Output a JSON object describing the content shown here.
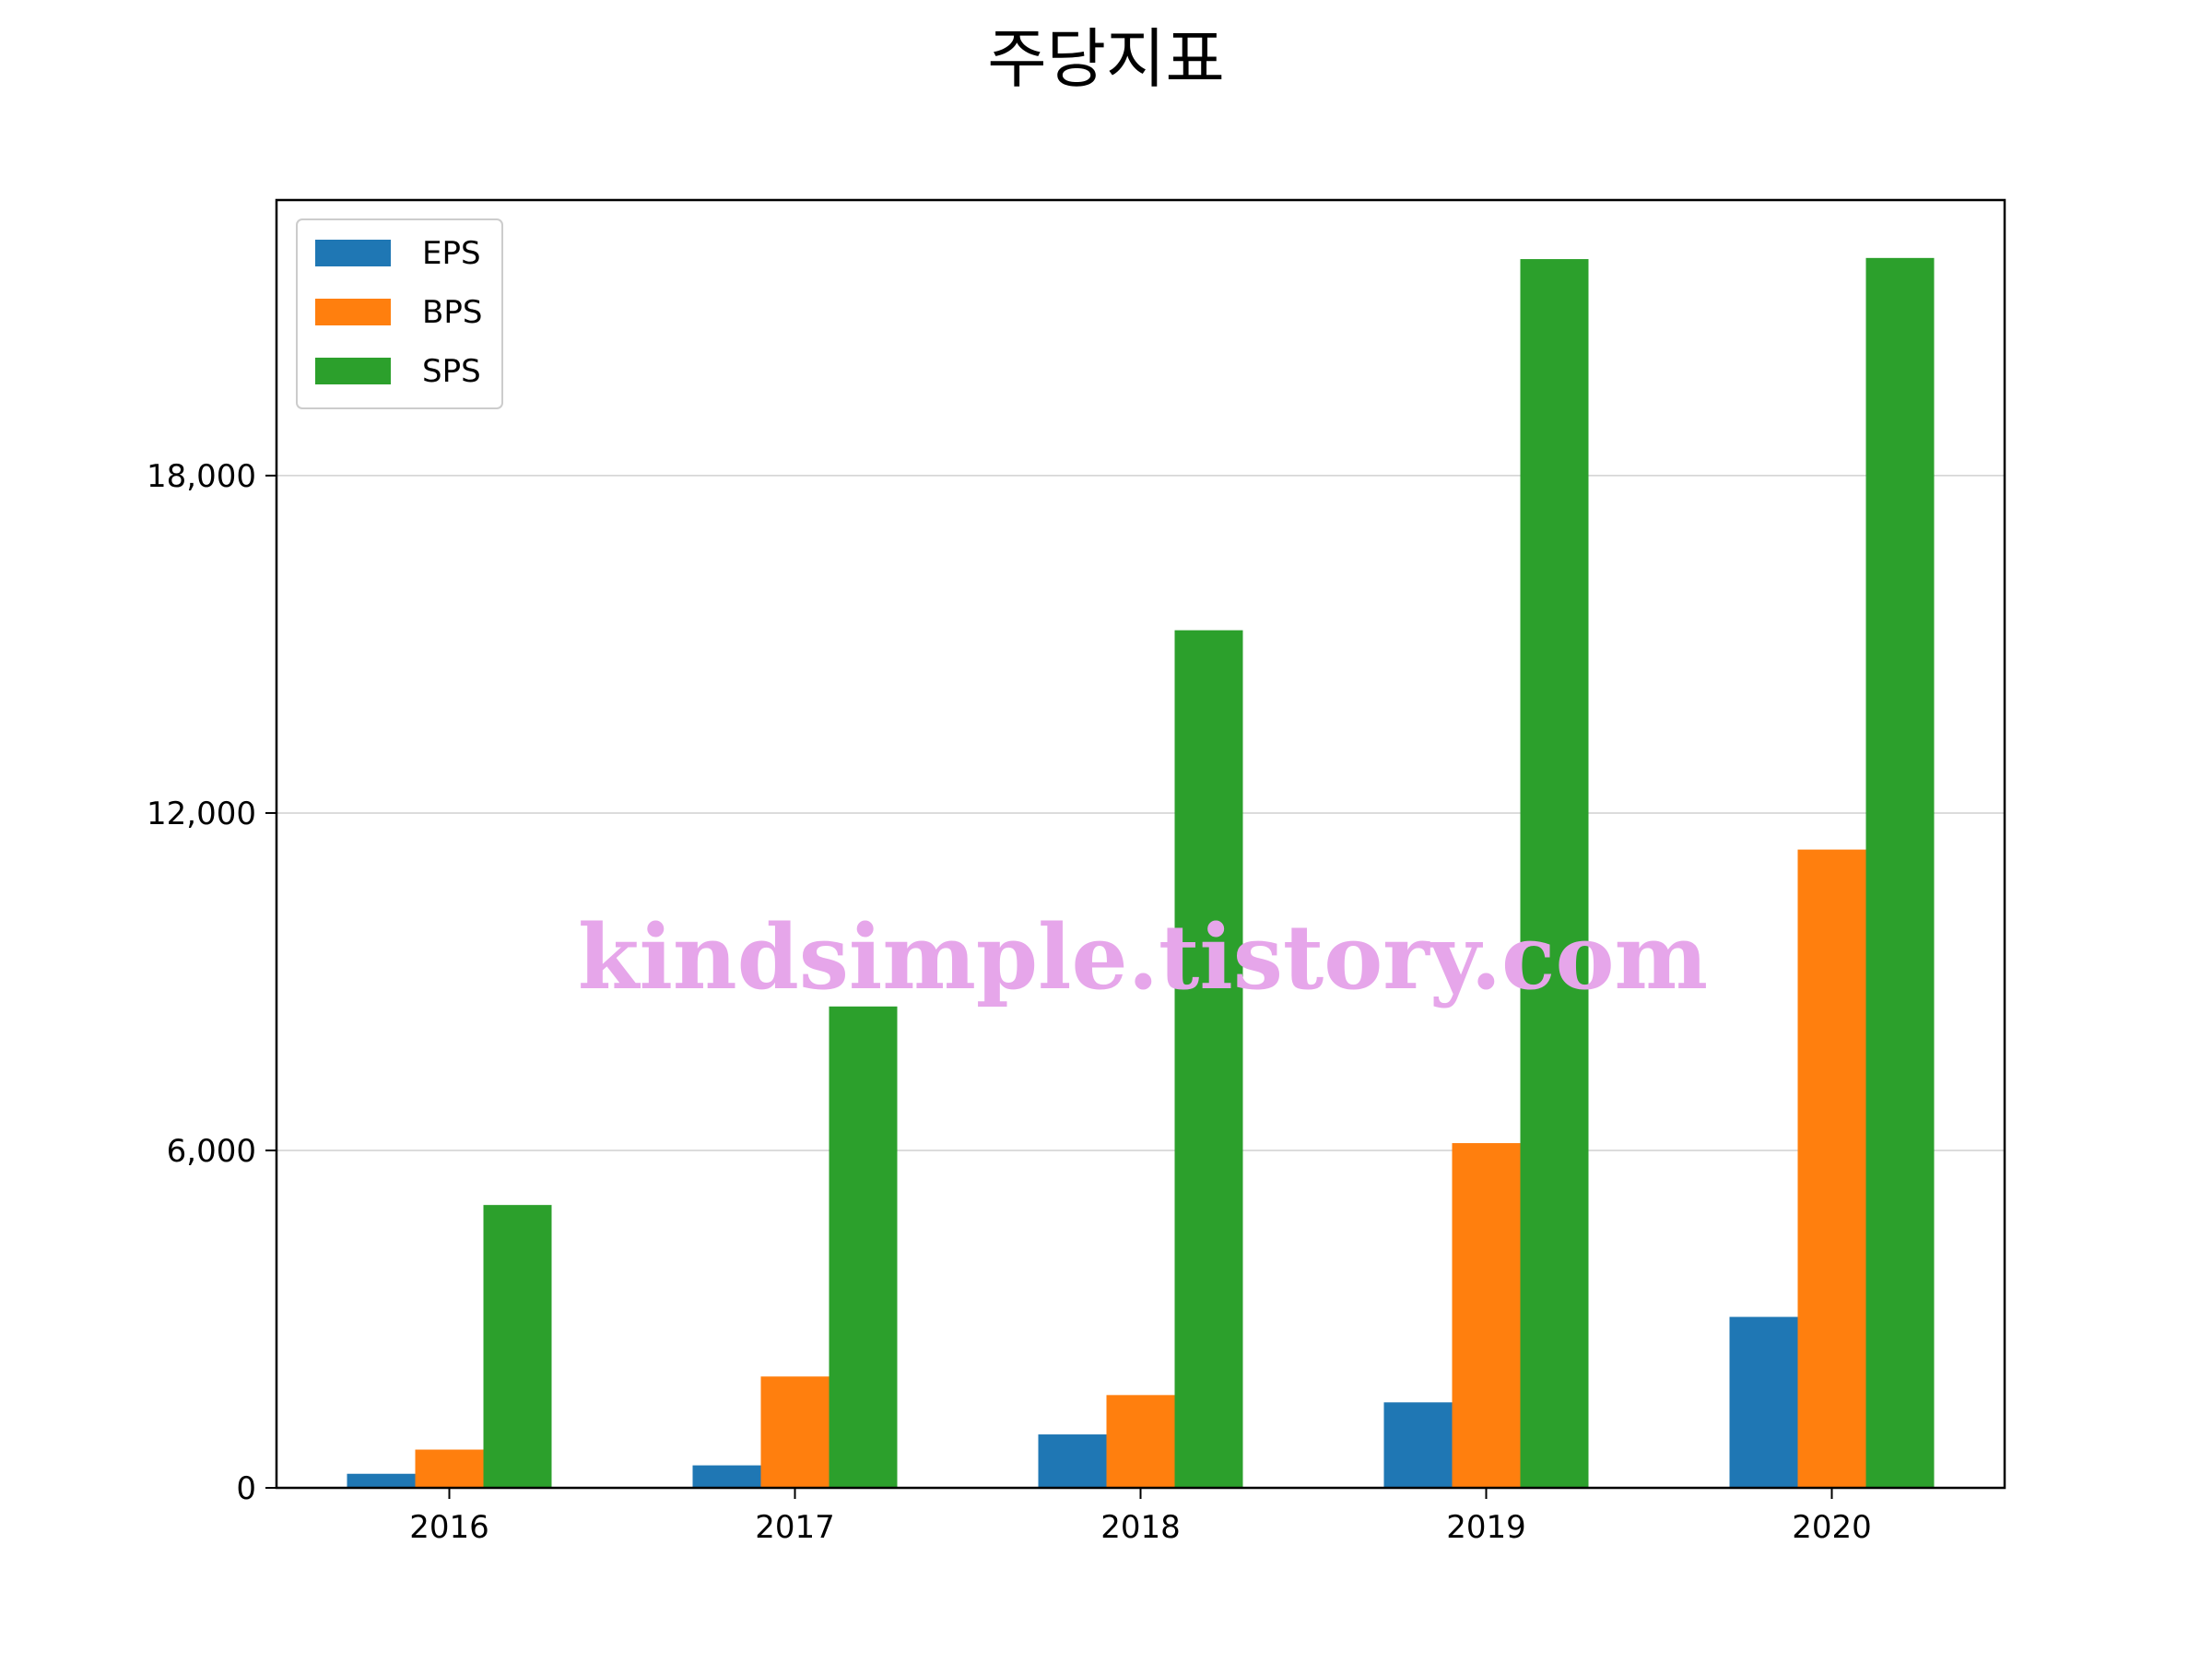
{
  "chart_data": {
    "type": "bar",
    "title": "주당지표",
    "xlabel": "",
    "ylabel": "",
    "categories": [
      "2016",
      "2017",
      "2018",
      "2019",
      "2020"
    ],
    "series": [
      {
        "name": "EPS",
        "color": "#1f77b4",
        "values": [
          250,
          400,
          950,
          1520,
          3040
        ]
      },
      {
        "name": "BPS",
        "color": "#ff7f0e",
        "values": [
          680,
          1980,
          1650,
          6130,
          11350
        ]
      },
      {
        "name": "SPS",
        "color": "#2ca02c",
        "values": [
          5030,
          8560,
          15250,
          21850,
          21870
        ]
      }
    ],
    "ylim": [
      0,
      22900
    ],
    "yticks": [
      0,
      6000,
      12000,
      18000
    ],
    "ytick_labels": [
      "0",
      "6,000",
      "12,000",
      "18,000"
    ],
    "grid": "y",
    "legend": "top-left"
  },
  "watermark": "kindsimple.tistory.com"
}
